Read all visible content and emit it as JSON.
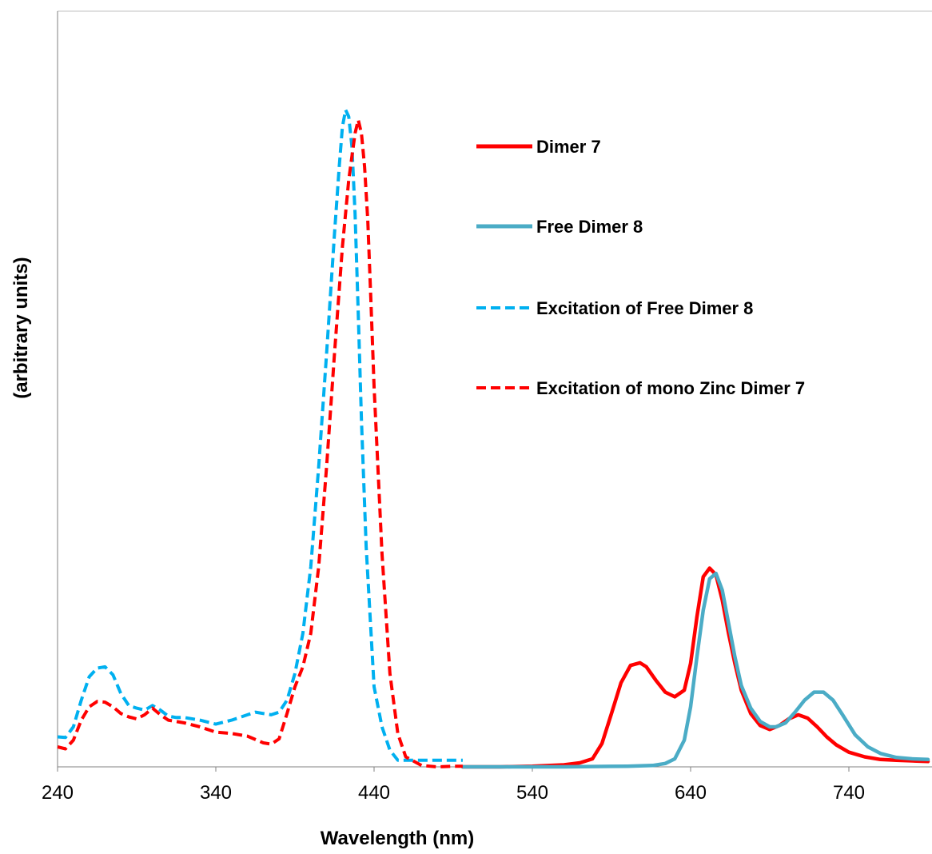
{
  "chart_data": {
    "type": "line",
    "title": "",
    "xlabel": "Wavelength (nm)",
    "ylabel": "(arbitrary units)",
    "xlim": [
      240,
      790
    ],
    "ylim": [
      0,
      1.0
    ],
    "xticks": [
      240,
      340,
      440,
      540,
      640,
      740
    ],
    "grid": false,
    "legend_position": "top-right",
    "series": [
      {
        "name": "Dimer 7",
        "color": "#ff0000",
        "dash": "solid",
        "x": [
          496,
          520,
          540,
          560,
          570,
          578,
          584,
          590,
          596,
          602,
          608,
          612,
          618,
          624,
          630,
          636,
          640,
          644,
          648,
          652,
          656,
          660,
          664,
          668,
          672,
          678,
          684,
          690,
          696,
          702,
          708,
          714,
          720,
          726,
          732,
          740,
          750,
          760,
          770,
          780,
          790
        ],
        "y": [
          0.0,
          0.0,
          0.001,
          0.003,
          0.006,
          0.012,
          0.035,
          0.08,
          0.126,
          0.152,
          0.156,
          0.15,
          0.13,
          0.112,
          0.105,
          0.115,
          0.155,
          0.225,
          0.285,
          0.298,
          0.288,
          0.25,
          0.2,
          0.155,
          0.115,
          0.08,
          0.062,
          0.056,
          0.062,
          0.072,
          0.078,
          0.073,
          0.06,
          0.045,
          0.033,
          0.022,
          0.015,
          0.011,
          0.01,
          0.009,
          0.008
        ]
      },
      {
        "name": "Free Dimer 8",
        "color": "#4bacc6",
        "dash": "solid",
        "x": [
          496,
          520,
          560,
          600,
          616,
          624,
          630,
          636,
          640,
          644,
          648,
          652,
          656,
          660,
          664,
          668,
          672,
          678,
          684,
          690,
          694,
          700,
          706,
          712,
          718,
          724,
          730,
          736,
          744,
          752,
          760,
          770,
          780,
          790
        ],
        "y": [
          0.0,
          0.0,
          0.0,
          0.001,
          0.002,
          0.005,
          0.012,
          0.04,
          0.09,
          0.165,
          0.235,
          0.282,
          0.29,
          0.265,
          0.215,
          0.165,
          0.122,
          0.088,
          0.068,
          0.06,
          0.06,
          0.066,
          0.082,
          0.1,
          0.112,
          0.112,
          0.1,
          0.078,
          0.048,
          0.03,
          0.02,
          0.014,
          0.012,
          0.011
        ]
      },
      {
        "name": "Excitation of Free Dimer 8",
        "color": "#00b0f0",
        "dash": "dashed",
        "x": [
          240,
          245,
          250,
          255,
          260,
          265,
          270,
          275,
          280,
          285,
          290,
          295,
          300,
          305,
          310,
          315,
          320,
          330,
          340,
          350,
          360,
          365,
          370,
          375,
          380,
          385,
          390,
          395,
          400,
          405,
          410,
          415,
          418,
          420,
          422,
          424,
          426,
          428,
          430,
          432,
          435,
          440,
          445,
          450,
          455,
          460,
          470,
          480,
          490,
          496
        ],
        "y": [
          0.045,
          0.044,
          0.06,
          0.1,
          0.135,
          0.148,
          0.15,
          0.138,
          0.11,
          0.092,
          0.088,
          0.085,
          0.092,
          0.085,
          0.076,
          0.074,
          0.074,
          0.07,
          0.064,
          0.07,
          0.078,
          0.082,
          0.08,
          0.078,
          0.082,
          0.1,
          0.14,
          0.2,
          0.3,
          0.45,
          0.62,
          0.8,
          0.9,
          0.96,
          0.985,
          0.975,
          0.93,
          0.83,
          0.68,
          0.52,
          0.33,
          0.12,
          0.06,
          0.025,
          0.01,
          0.01,
          0.01,
          0.01,
          0.01,
          0.01
        ]
      },
      {
        "name": "Excitation of mono Zinc Dimer 7",
        "color": "#ff0000",
        "dash": "dashed",
        "x": [
          240,
          245,
          250,
          255,
          260,
          265,
          270,
          275,
          280,
          285,
          290,
          295,
          300,
          305,
          310,
          315,
          320,
          330,
          340,
          350,
          360,
          370,
          375,
          380,
          385,
          390,
          395,
          400,
          405,
          410,
          415,
          420,
          424,
          428,
          430,
          432,
          434,
          436,
          438,
          440,
          445,
          450,
          455,
          460,
          470,
          480,
          490,
          496
        ],
        "y": [
          0.03,
          0.027,
          0.04,
          0.07,
          0.09,
          0.098,
          0.097,
          0.09,
          0.08,
          0.075,
          0.072,
          0.078,
          0.088,
          0.078,
          0.07,
          0.068,
          0.066,
          0.06,
          0.052,
          0.05,
          0.046,
          0.036,
          0.034,
          0.042,
          0.08,
          0.12,
          0.15,
          0.2,
          0.3,
          0.45,
          0.62,
          0.78,
          0.88,
          0.95,
          0.97,
          0.95,
          0.9,
          0.82,
          0.7,
          0.57,
          0.32,
          0.14,
          0.05,
          0.015,
          0.002,
          0.0,
          0.001,
          0.001
        ]
      }
    ]
  }
}
